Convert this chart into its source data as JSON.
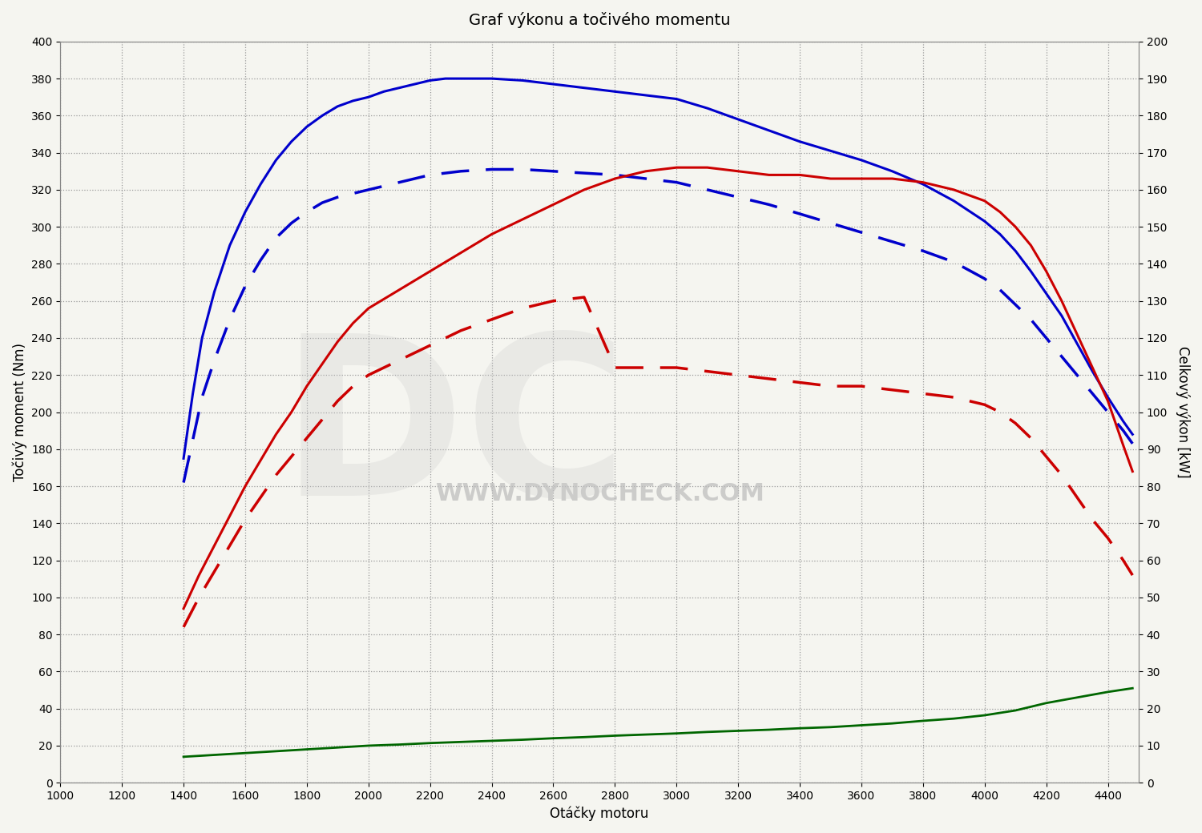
{
  "title": "Graf výkonu a točivého momentu",
  "xlabel": "Otáčky motoru",
  "ylabel_left": "Točivý moment (Nm)",
  "ylabel_right": "Celkový výkon [kW]",
  "xlim": [
    1000,
    4500
  ],
  "ylim_left": [
    0,
    400
  ],
  "ylim_right": [
    0,
    200
  ],
  "xticks": [
    1000,
    1200,
    1400,
    1600,
    1800,
    2000,
    2200,
    2400,
    2600,
    2800,
    3000,
    3200,
    3400,
    3600,
    3800,
    4000,
    4200,
    4400
  ],
  "yticks_left": [
    0,
    20,
    40,
    60,
    80,
    100,
    120,
    140,
    160,
    180,
    200,
    220,
    240,
    260,
    280,
    300,
    320,
    340,
    360,
    380,
    400
  ],
  "yticks_right": [
    0,
    10,
    20,
    30,
    40,
    50,
    60,
    70,
    80,
    90,
    100,
    110,
    120,
    130,
    140,
    150,
    160,
    170,
    180,
    190,
    200
  ],
  "background_color": "#f5f5f0",
  "grid_color": "#999999",
  "watermark_text": "WWW.DYNOCHECK.COM",
  "blue_solid_torque": {
    "rpm": [
      1400,
      1430,
      1460,
      1500,
      1550,
      1600,
      1650,
      1700,
      1750,
      1800,
      1850,
      1900,
      1950,
      2000,
      2050,
      2100,
      2150,
      2200,
      2250,
      2300,
      2400,
      2500,
      2600,
      2700,
      2800,
      2900,
      3000,
      3100,
      3200,
      3300,
      3400,
      3500,
      3600,
      3700,
      3800,
      3900,
      4000,
      4050,
      4100,
      4150,
      4200,
      4250,
      4300,
      4350,
      4400,
      4450,
      4480
    ],
    "values": [
      175,
      210,
      240,
      265,
      290,
      308,
      323,
      336,
      346,
      354,
      360,
      365,
      368,
      370,
      373,
      375,
      377,
      379,
      380,
      380,
      380,
      379,
      377,
      375,
      373,
      371,
      369,
      364,
      358,
      352,
      346,
      341,
      336,
      330,
      323,
      314,
      303,
      296,
      287,
      276,
      264,
      252,
      237,
      222,
      208,
      195,
      188
    ],
    "color": "#0000cc",
    "lw": 2.2,
    "style": "solid"
  },
  "blue_dashed_torque": {
    "rpm": [
      1400,
      1430,
      1460,
      1500,
      1550,
      1600,
      1650,
      1700,
      1750,
      1800,
      1850,
      1900,
      1950,
      2000,
      2050,
      2100,
      2200,
      2300,
      2400,
      2500,
      2600,
      2700,
      2800,
      2900,
      3000,
      3100,
      3200,
      3300,
      3400,
      3500,
      3600,
      3700,
      3800,
      3900,
      4000,
      4050,
      4100,
      4150,
      4200,
      4250,
      4300,
      4350,
      4400,
      4450,
      4480
    ],
    "values": [
      162,
      185,
      208,
      228,
      250,
      268,
      282,
      294,
      302,
      308,
      313,
      316,
      318,
      320,
      322,
      324,
      328,
      330,
      331,
      331,
      330,
      329,
      328,
      326,
      324,
      320,
      316,
      312,
      307,
      302,
      297,
      292,
      287,
      281,
      272,
      266,
      258,
      250,
      240,
      230,
      220,
      210,
      200,
      190,
      183
    ],
    "color": "#0000cc",
    "lw": 2.5,
    "style": "dashed"
  },
  "red_solid_power_kw": {
    "rpm": [
      1400,
      1450,
      1500,
      1550,
      1600,
      1650,
      1700,
      1750,
      1800,
      1850,
      1900,
      1950,
      2000,
      2100,
      2200,
      2300,
      2400,
      2500,
      2600,
      2700,
      2800,
      2900,
      3000,
      3100,
      3200,
      3300,
      3400,
      3500,
      3600,
      3700,
      3800,
      3900,
      4000,
      4050,
      4100,
      4150,
      4200,
      4250,
      4300,
      4350,
      4400,
      4450,
      4480
    ],
    "values": [
      47,
      56,
      64,
      72,
      80,
      87,
      94,
      100,
      107,
      113,
      119,
      124,
      128,
      133,
      138,
      143,
      148,
      152,
      156,
      160,
      163,
      165,
      166,
      166,
      165,
      164,
      164,
      163,
      163,
      163,
      162,
      160,
      157,
      154,
      150,
      145,
      138,
      130,
      121,
      112,
      103,
      91,
      84
    ],
    "color": "#cc0000",
    "lw": 2.2,
    "style": "solid"
  },
  "red_dashed_power_kw": {
    "rpm": [
      1400,
      1450,
      1500,
      1550,
      1600,
      1650,
      1700,
      1750,
      1800,
      1850,
      1900,
      1950,
      2000,
      2100,
      2200,
      2300,
      2400,
      2500,
      2600,
      2700,
      2800,
      2900,
      3000,
      3100,
      3200,
      3300,
      3400,
      3500,
      3600,
      3700,
      3800,
      3900,
      4000,
      4050,
      4100,
      4150,
      4200,
      4250,
      4300,
      4350,
      4400,
      4450,
      4480
    ],
    "values": [
      42,
      50,
      57,
      64,
      71,
      77,
      83,
      88,
      93,
      98,
      103,
      107,
      110,
      114,
      118,
      122,
      125,
      128,
      130,
      131,
      112,
      112,
      112,
      111,
      110,
      109,
      108,
      107,
      107,
      106,
      105,
      104,
      102,
      100,
      97,
      93,
      88,
      83,
      77,
      71,
      66,
      60,
      56
    ],
    "color": "#cc0000",
    "lw": 2.5,
    "style": "dashed"
  },
  "green_line_kw": {
    "rpm": [
      1400,
      1500,
      1600,
      1700,
      1800,
      1900,
      2000,
      2100,
      2200,
      2300,
      2400,
      2500,
      2600,
      2700,
      2800,
      2900,
      3000,
      3100,
      3200,
      3300,
      3400,
      3500,
      3600,
      3700,
      3800,
      3900,
      4000,
      4100,
      4200,
      4300,
      4400,
      4480
    ],
    "values": [
      7,
      7.5,
      8,
      8.5,
      9,
      9.5,
      10,
      10.3,
      10.7,
      11,
      11.3,
      11.6,
      12,
      12.3,
      12.7,
      13,
      13.3,
      13.7,
      14,
      14.3,
      14.7,
      15,
      15.5,
      16,
      16.7,
      17.3,
      18.2,
      19.5,
      21.5,
      23,
      24.5,
      25.5
    ],
    "color": "#006600",
    "lw": 2.0,
    "style": "solid"
  }
}
